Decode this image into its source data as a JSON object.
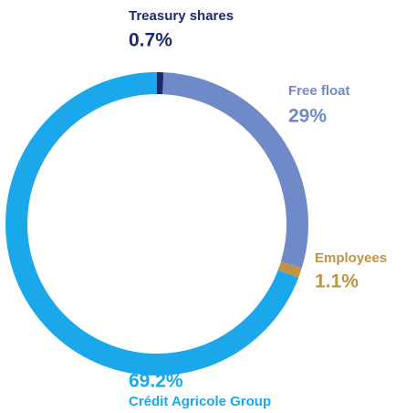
{
  "chart_data": {
    "type": "donut",
    "categories": [
      "Treasury shares",
      "Free float",
      "Employees",
      "Crédit Agricole Group"
    ],
    "values": [
      0.7,
      29,
      1.1,
      69.2
    ],
    "value_labels": [
      "0.7%",
      "29%",
      "1.1%",
      "69.2%"
    ],
    "colors": [
      "#1b2a6b",
      "#7089c9",
      "#c09448",
      "#1aa8ea"
    ]
  }
}
